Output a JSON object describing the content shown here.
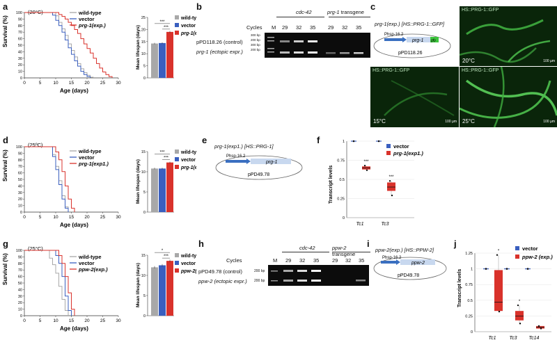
{
  "panel_letters": [
    "a",
    "b",
    "c",
    "d",
    "e",
    "f",
    "g",
    "h",
    "i",
    "j"
  ],
  "a": {
    "temp": "(20°C)",
    "legend": [
      "wild-type",
      "vector",
      "prg-1(exp.)"
    ],
    "ylabel": "Survival (%)",
    "xlabel": "Age (days)",
    "bar_ylabel": "Mean lifespan (days)",
    "sig": [
      "***",
      "***"
    ],
    "colors": {
      "wt": "#a8a8a8",
      "vector": "#3a5fbf",
      "exp": "#d9322b"
    }
  },
  "b": {
    "groups": [
      "cdc-42",
      "prg-1 transgene"
    ],
    "cycles_label": "Cycles",
    "m_label": "M",
    "cycles": [
      "29",
      "32",
      "35",
      "29",
      "32",
      "35"
    ],
    "rows": [
      "pPD118.26 (control)",
      "prg-1 (ectopic expr.)"
    ],
    "ladder": [
      "300 bp",
      "200 bp",
      "300 bp",
      "200 bp"
    ]
  },
  "c": {
    "construct": "prg-1(exp.) [HS::PRG-1::GFP]",
    "promoter": "Phsp-16.2",
    "gene": "prg-1",
    "tag": "gfp",
    "plasmid": "pPD118.26",
    "captions": [
      "HS::PRG-1::GFP",
      "HS::PRG-1::GFP",
      "HS::PRG-1::GFP"
    ],
    "temps": [
      "20°C",
      "15°C",
      "25°C"
    ],
    "scale": "100 µm"
  },
  "d": {
    "temp": "(25ºC)",
    "legend": [
      "wild-type",
      "vector",
      "prg-1(exp1.)"
    ],
    "ylabel": "Survival (%)",
    "xlabel": "Age (days)",
    "bar_ylabel": "Mean lifespan (days)",
    "sig": [
      "***",
      "***"
    ]
  },
  "e": {
    "construct": "prg-1(exp1.) [HS::PRG-1]",
    "promoter": "Phsp-16.2",
    "gene": "prg-1",
    "plasmid": "pPD49.78"
  },
  "f": {
    "ylabel": "Transcript levels",
    "legend": [
      "vector",
      "prg-1(exp1.)"
    ],
    "sig": [
      "***",
      "***"
    ]
  },
  "g": {
    "temp": "(25°C)",
    "legend": [
      "wild-type",
      "vector",
      "ppw-2(exp.)"
    ],
    "ylabel": "Survival (%)",
    "xlabel": "Age (days)",
    "bar_ylabel": "Mean lifespan (days)",
    "sig": [
      "*",
      "***"
    ]
  },
  "h": {
    "groups": [
      "cdc-42",
      "ppw-2 transgene"
    ],
    "cycles_label": "Cycles",
    "m_label": "M",
    "cycles": [
      "29",
      "32",
      "35",
      "29",
      "32",
      "35"
    ],
    "rows": [
      "pPD49.78 (control)",
      "ppw-2 (ectopic expr.)"
    ],
    "ladder": [
      "200 bp",
      "200 bp"
    ]
  },
  "i": {
    "construct": "ppw-2(exp.) [HS::PPW-2]",
    "promoter": "Phsp-16.2",
    "gene": "ppw-2",
    "plasmid": "pPD49.78"
  },
  "j": {
    "ylabel": "Transcript levels",
    "legend": [
      "vector",
      "ppw-2 (exp.)"
    ],
    "sig": [
      "*",
      "*"
    ]
  },
  "chart_data": [
    {
      "panel": "a",
      "type": "line",
      "xlabel": "Age (days)",
      "ylabel": "Survival (%)",
      "xlim": [
        0,
        30
      ],
      "ylim": [
        0,
        100
      ],
      "x_ticks": [
        0,
        5,
        10,
        15,
        20,
        25,
        30
      ],
      "y_ticks": [
        0,
        10,
        20,
        30,
        40,
        50,
        60,
        70,
        80,
        90,
        100
      ],
      "series": [
        {
          "name": "wild-type",
          "x": [
            0,
            9,
            10,
            11,
            12,
            13,
            14,
            15,
            16,
            17,
            18,
            19,
            20,
            21,
            22
          ],
          "y": [
            100,
            100,
            95,
            85,
            75,
            65,
            52,
            42,
            32,
            22,
            14,
            8,
            4,
            1,
            0
          ]
        },
        {
          "name": "vector",
          "x": [
            0,
            8,
            9,
            10,
            11,
            12,
            13,
            14,
            15,
            16,
            17,
            18,
            19,
            20,
            21
          ],
          "y": [
            100,
            100,
            96,
            88,
            80,
            70,
            58,
            46,
            36,
            26,
            18,
            10,
            5,
            2,
            0
          ]
        },
        {
          "name": "prg-1(exp.)",
          "x": [
            0,
            10,
            11,
            12,
            13,
            14,
            15,
            16,
            17,
            18,
            19,
            20,
            21,
            22,
            23,
            24,
            25,
            26,
            27,
            28
          ],
          "y": [
            100,
            100,
            97,
            94,
            90,
            85,
            80,
            74,
            68,
            60,
            52,
            45,
            38,
            30,
            22,
            15,
            9,
            5,
            2,
            0
          ]
        }
      ]
    },
    {
      "panel": "a-bars",
      "type": "bar",
      "ylabel": "Mean lifespan (days)",
      "ylim": [
        0,
        25
      ],
      "y_ticks": [
        0,
        5,
        10,
        15,
        20,
        25
      ],
      "categories": [
        "wild-type",
        "vector",
        "prg-1(exp.)"
      ],
      "values": [
        14.2,
        14.4,
        19.0
      ],
      "errors": [
        0.3,
        0.3,
        0.4
      ]
    },
    {
      "panel": "d",
      "type": "line",
      "xlabel": "Age (days)",
      "ylabel": "Survival (%)",
      "xlim": [
        0,
        30
      ],
      "ylim": [
        0,
        100
      ],
      "x_ticks": [
        0,
        5,
        10,
        15,
        20,
        25,
        30
      ],
      "y_ticks": [
        0,
        10,
        20,
        30,
        40,
        50,
        60,
        70,
        80,
        90,
        100
      ],
      "series": [
        {
          "name": "wild-type",
          "x": [
            0,
            8,
            9,
            10,
            11,
            12,
            13,
            14
          ],
          "y": [
            100,
            100,
            88,
            70,
            48,
            25,
            8,
            0
          ]
        },
        {
          "name": "vector",
          "x": [
            0,
            8,
            9,
            10,
            11,
            12,
            13,
            14
          ],
          "y": [
            100,
            100,
            85,
            65,
            42,
            20,
            6,
            0
          ]
        },
        {
          "name": "prg-1(exp1.)",
          "x": [
            0,
            9,
            10,
            11,
            12,
            13,
            14,
            15,
            16
          ],
          "y": [
            100,
            100,
            92,
            80,
            62,
            40,
            20,
            6,
            0
          ]
        }
      ]
    },
    {
      "panel": "d-bars",
      "type": "bar",
      "ylabel": "Mean lifespan (days)",
      "ylim": [
        0,
        15
      ],
      "y_ticks": [
        0,
        5,
        10,
        15
      ],
      "categories": [
        "wild-type",
        "vector",
        "prg-1(exp1.)"
      ],
      "values": [
        10.8,
        10.8,
        12.3
      ],
      "errors": [
        0.2,
        0.2,
        0.2
      ]
    },
    {
      "panel": "f",
      "type": "box",
      "ylabel": "Transcript levels",
      "ylim": [
        0,
        1
      ],
      "y_ticks": [
        0,
        0.25,
        0.5,
        0.75,
        1
      ],
      "categories": [
        "Tc1",
        "Tc3"
      ],
      "series": [
        {
          "name": "vector",
          "values": [
            1,
            1
          ]
        },
        {
          "name": "prg-1(exp1.)",
          "median": [
            0.65,
            0.4
          ],
          "q1": [
            0.63,
            0.35
          ],
          "q3": [
            0.67,
            0.46
          ],
          "min": [
            0.62,
            0.29
          ],
          "max": [
            0.68,
            0.48
          ]
        }
      ]
    },
    {
      "panel": "g",
      "type": "line",
      "xlabel": "Age (days)",
      "ylabel": "Survival (%)",
      "xlim": [
        0,
        30
      ],
      "ylim": [
        0,
        100
      ],
      "x_ticks": [
        0,
        5,
        10,
        15,
        20,
        25,
        30
      ],
      "y_ticks": [
        0,
        10,
        20,
        30,
        40,
        50,
        60,
        70,
        80,
        90,
        100
      ],
      "series": [
        {
          "name": "wild-type",
          "x": [
            0,
            7,
            8,
            9,
            10,
            11,
            12,
            13,
            14
          ],
          "y": [
            100,
            100,
            88,
            78,
            65,
            45,
            25,
            8,
            0
          ]
        },
        {
          "name": "vector",
          "x": [
            0,
            9,
            10,
            11,
            12,
            13,
            14,
            15
          ],
          "y": [
            100,
            100,
            92,
            80,
            60,
            30,
            8,
            0
          ]
        },
        {
          "name": "ppw-2(exp.)",
          "x": [
            0,
            10,
            11,
            12,
            13,
            14,
            15,
            16
          ],
          "y": [
            100,
            100,
            92,
            80,
            60,
            35,
            10,
            0
          ]
        }
      ]
    },
    {
      "panel": "g-bars",
      "type": "bar",
      "ylabel": "Mean lifespan (days)",
      "ylim": [
        0,
        15
      ],
      "y_ticks": [
        0,
        5,
        10,
        15
      ],
      "categories": [
        "wild-type",
        "vector",
        "ppw-2(exp.)"
      ],
      "values": [
        12.0,
        12.5,
        13.6
      ],
      "errors": [
        0.3,
        0.3,
        0.3
      ]
    },
    {
      "panel": "j",
      "type": "box",
      "ylabel": "Transcript levels",
      "ylim": [
        0,
        1.25
      ],
      "y_ticks": [
        0,
        0.25,
        0.5,
        0.75,
        1,
        1.25
      ],
      "categories": [
        "Tc1",
        "Tc3",
        "Tc14"
      ],
      "series": [
        {
          "name": "vector",
          "values": [
            1,
            1,
            1
          ]
        },
        {
          "name": "ppw-2 (exp.)",
          "median": [
            0.47,
            0.25,
            0.07
          ],
          "q1": [
            0.33,
            0.18,
            0.05
          ],
          "q3": [
            0.98,
            0.33,
            0.09
          ],
          "min": [
            0.32,
            0.13,
            0.05
          ],
          "max": [
            1.22,
            0.42,
            0.09
          ]
        }
      ]
    }
  ]
}
